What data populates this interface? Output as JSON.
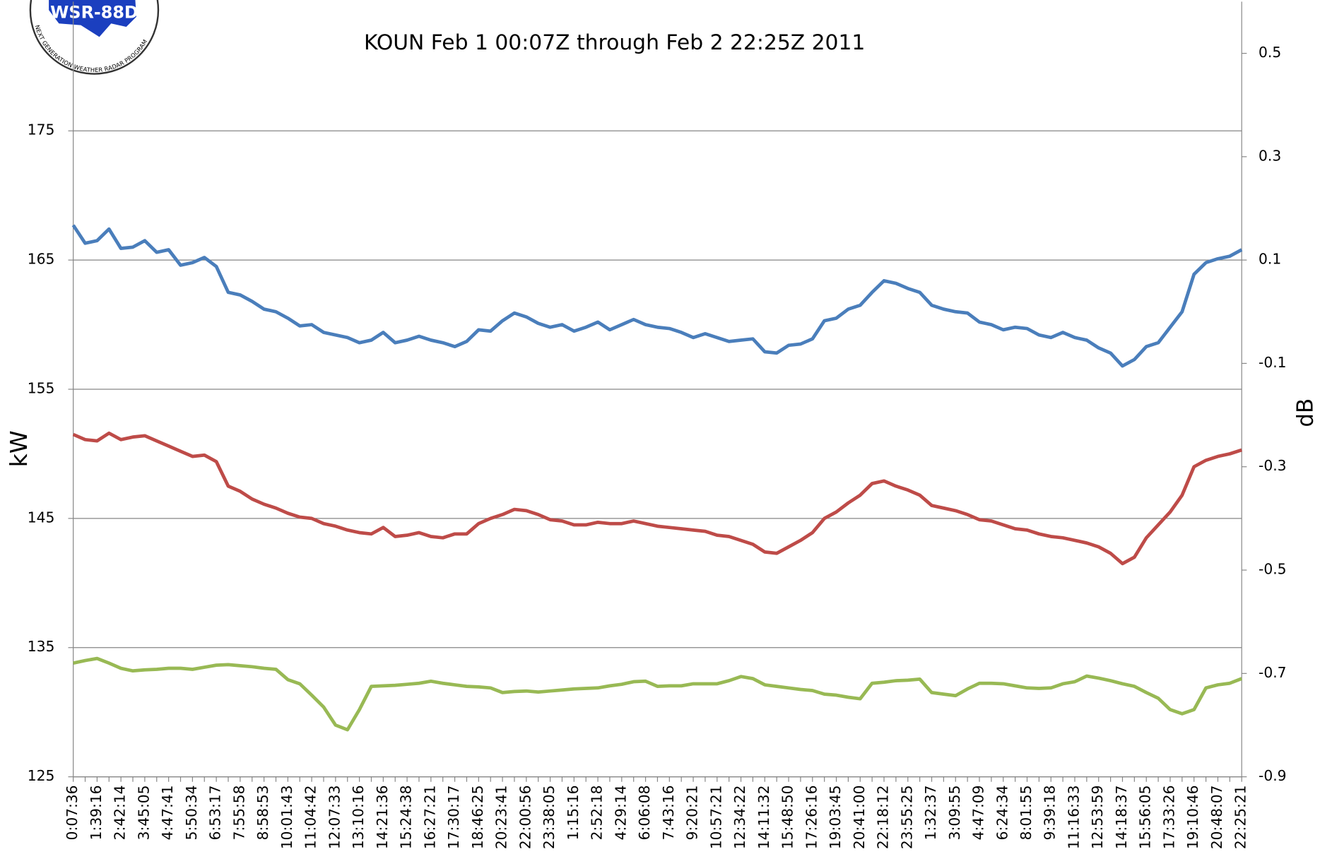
{
  "logo": {
    "name": "WSR-88D",
    "ring": "NEXT GENERATION WEATHER RADAR PROGRAM"
  },
  "chart_data": {
    "type": "line",
    "title": "KOUN Feb 1 00:07Z through Feb 2 22:25Z 2011",
    "y_label": "kW",
    "y2_label": "dB",
    "ylim": [
      125,
      185
    ],
    "yticks": [
      125,
      135,
      145,
      155,
      165,
      175
    ],
    "y2lim": [
      -0.9,
      0.6
    ],
    "y2ticks": [
      -0.9,
      -0.7,
      -0.5,
      -0.3,
      -0.1,
      0.1,
      0.3,
      0.5
    ],
    "grid": true,
    "categories": [
      "0:07:36",
      null,
      "1:39:16",
      null,
      "2:42:14",
      null,
      "3:45:05",
      null,
      "4:47:41",
      null,
      "5:50:34",
      null,
      "6:53:17",
      null,
      "7:55:58",
      null,
      "8:58:53",
      null,
      "10:01:43",
      null,
      "11:04:42",
      null,
      "12:07:33",
      null,
      "13:10:16",
      null,
      "14:21:36",
      null,
      "15:24:38",
      null,
      "16:27:21",
      null,
      "17:30:17",
      null,
      "18:46:25",
      null,
      "20:23:41",
      null,
      "22:00:56",
      null,
      "23:38:05",
      null,
      "1:15:16",
      null,
      "2:52:18",
      null,
      "4:29:14",
      null,
      "6:06:08",
      null,
      "7:43:16",
      null,
      "9:20:21",
      null,
      "10:57:21",
      null,
      "12:34:22",
      null,
      "14:11:32",
      null,
      "15:48:50",
      null,
      "17:26:16",
      null,
      "19:03:45",
      null,
      "20:41:00",
      null,
      "22:18:12",
      null,
      "23:55:25",
      null,
      "1:32:37",
      null,
      "3:09:55",
      null,
      "4:47:09",
      null,
      "6:24:34",
      null,
      "8:01:55",
      null,
      "9:39:18",
      null,
      "11:16:33",
      null,
      "12:53:59",
      null,
      "14:18:37",
      null,
      "15:56:05",
      null,
      "17:33:26",
      null,
      "19:10:46",
      null,
      "20:48:07",
      null,
      "22:25:21"
    ],
    "series": [
      {
        "color": "#4a7ebb",
        "values": [
          167.7,
          166.3,
          166.5,
          167.4,
          165.9,
          166,
          166.5,
          165.6,
          165.8,
          164.6,
          164.8,
          165.2,
          164.5,
          162.5,
          162.3,
          161.8,
          161.2,
          161,
          160.5,
          159.9,
          160,
          159.4,
          159.2,
          159,
          158.6,
          158.8,
          159.4,
          158.6,
          158.8,
          159.1,
          158.8,
          158.6,
          158.3,
          158.7,
          159.6,
          159.5,
          160.3,
          160.9,
          160.6,
          160.1,
          159.8,
          160,
          159.5,
          159.8,
          160.2,
          159.6,
          160,
          160.4,
          160,
          159.8,
          159.7,
          159.4,
          159,
          159.3,
          159,
          158.7,
          158.8,
          158.9,
          157.9,
          157.8,
          158.4,
          158.5,
          158.9,
          160.3,
          160.5,
          161.2,
          161.5,
          162.5,
          163.4,
          163.2,
          162.8,
          162.5,
          161.5,
          161.2,
          161,
          160.9,
          160.2,
          160,
          159.6,
          159.8,
          159.7,
          159.2,
          159,
          159.4,
          159,
          158.8,
          158.2,
          157.8,
          156.8,
          157.3,
          158.3,
          158.6,
          159.8,
          161,
          163.9,
          164.8,
          165.1,
          165.3,
          165.8
        ]
      },
      {
        "color": "#be4b48",
        "values": [
          151.5,
          151.1,
          151,
          151.6,
          151.1,
          151.3,
          151.4,
          151,
          150.6,
          150.2,
          149.8,
          149.9,
          149.4,
          147.5,
          147.1,
          146.5,
          146.1,
          145.8,
          145.4,
          145.1,
          145,
          144.6,
          144.4,
          144.1,
          143.9,
          143.8,
          144.3,
          143.6,
          143.7,
          143.9,
          143.6,
          143.5,
          143.8,
          143.8,
          144.6,
          145,
          145.3,
          145.7,
          145.6,
          145.3,
          144.9,
          144.8,
          144.5,
          144.5,
          144.7,
          144.6,
          144.6,
          144.8,
          144.6,
          144.4,
          144.3,
          144.2,
          144.1,
          144,
          143.7,
          143.6,
          143.3,
          143,
          142.4,
          142.3,
          142.8,
          143.3,
          143.9,
          145,
          145.5,
          146.2,
          146.8,
          147.7,
          147.9,
          147.5,
          147.2,
          146.8,
          146,
          145.8,
          145.6,
          145.3,
          144.9,
          144.8,
          144.5,
          144.2,
          144.1,
          143.8,
          143.6,
          143.5,
          143.3,
          143.1,
          142.8,
          142.3,
          141.5,
          142,
          143.5,
          144.5,
          145.5,
          146.8,
          149,
          149.5,
          149.8,
          150,
          150.3
        ]
      },
      {
        "color": "#98b954",
        "axis": "y2",
        "values": [
          -0.68,
          -0.675,
          -0.671,
          -0.68,
          -0.69,
          -0.695,
          -0.693,
          -0.692,
          -0.69,
          -0.69,
          -0.692,
          -0.688,
          -0.684,
          -0.683,
          -0.685,
          -0.687,
          -0.69,
          -0.692,
          -0.712,
          -0.72,
          -0.742,
          -0.765,
          -0.8,
          -0.809,
          -0.77,
          -0.725,
          -0.724,
          -0.723,
          -0.721,
          -0.719,
          -0.715,
          -0.719,
          -0.722,
          -0.725,
          -0.726,
          -0.728,
          -0.737,
          -0.735,
          -0.734,
          -0.736,
          -0.734,
          -0.732,
          -0.73,
          -0.729,
          -0.728,
          -0.724,
          -0.721,
          -0.716,
          -0.715,
          -0.725,
          -0.724,
          -0.724,
          -0.72,
          -0.72,
          -0.72,
          -0.714,
          -0.706,
          -0.71,
          -0.722,
          -0.725,
          -0.728,
          -0.731,
          -0.733,
          -0.74,
          -0.742,
          -0.746,
          -0.749,
          -0.719,
          -0.717,
          -0.714,
          -0.713,
          -0.711,
          -0.737,
          -0.74,
          -0.743,
          -0.73,
          -0.719,
          -0.719,
          -0.72,
          -0.724,
          -0.728,
          -0.729,
          -0.728,
          -0.72,
          -0.716,
          -0.705,
          -0.709,
          -0.714,
          -0.72,
          -0.725,
          -0.737,
          -0.748,
          -0.77,
          -0.778,
          -0.77,
          -0.728,
          -0.722,
          -0.719,
          -0.71
        ]
      }
    ]
  }
}
